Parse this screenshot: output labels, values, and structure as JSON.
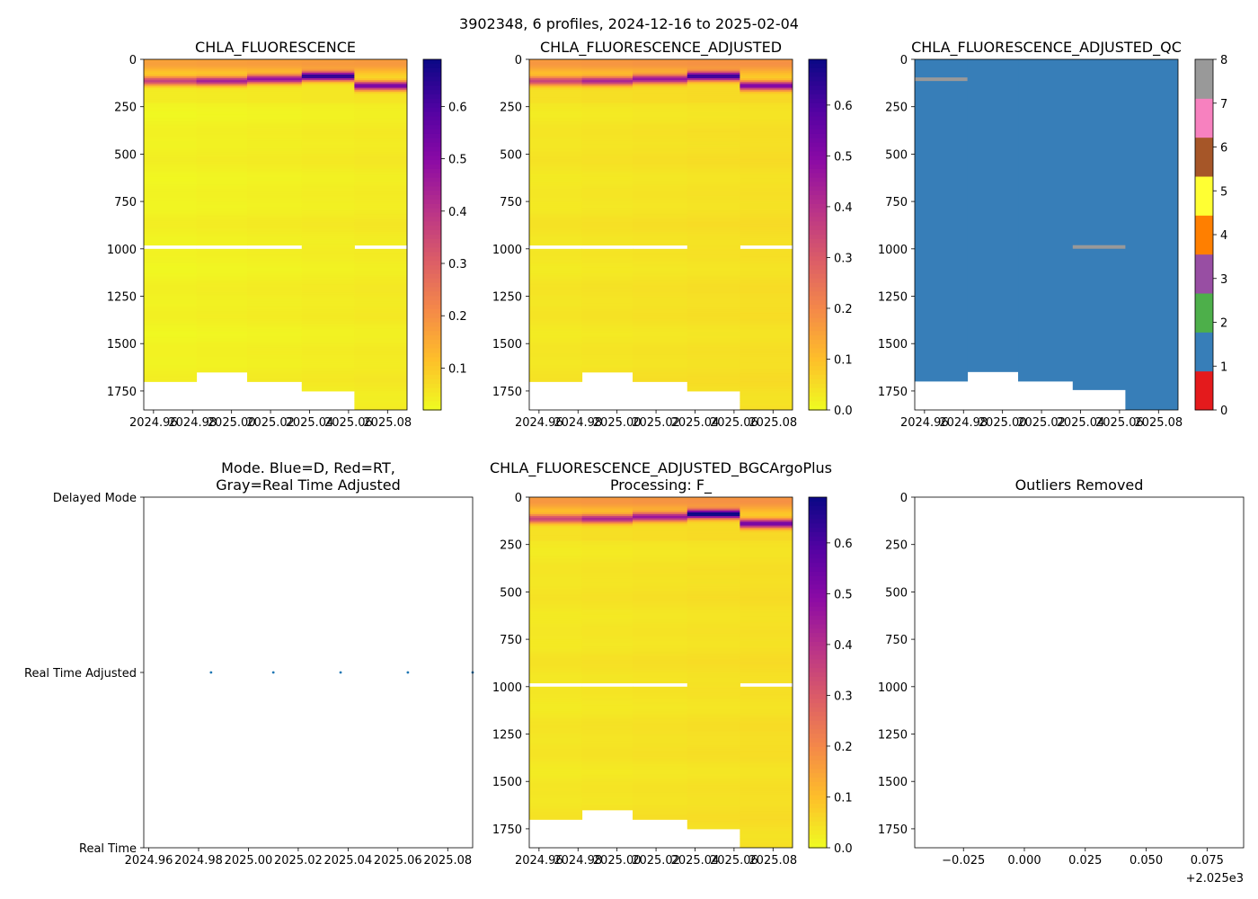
{
  "figure": {
    "suptitle": "3902348, 6 profiles, 2024-12-16 to 2025-02-04"
  },
  "colors": {
    "plasma": [
      "#0d0887",
      "#5302a3",
      "#8b0aa5",
      "#b83289",
      "#db5c68",
      "#f48849",
      "#febd2a",
      "#f0f921"
    ],
    "qc": [
      "#e41a1c",
      "#377eb8",
      "#4daf4a",
      "#984ea3",
      "#ff7f00",
      "#ffff33",
      "#a65628",
      "#f781bf",
      "#999999"
    ],
    "mode_points": "#1f77b4"
  },
  "chart_data": [
    {
      "id": "chla",
      "type": "heatmap",
      "title": "CHLA_FLUORESCENCE",
      "xlim": [
        2024.955,
        2025.09
      ],
      "ylim": [
        1850,
        0
      ],
      "xticks": [
        "2024.96",
        "2024.98",
        "2025.00",
        "2025.02",
        "2025.04",
        "2025.06",
        "2025.08"
      ],
      "xtick_values": [
        2024.96,
        2024.98,
        2025.0,
        2025.02,
        2025.04,
        2025.06,
        2025.08
      ],
      "yticks": [
        "0",
        "250",
        "500",
        "750",
        "1000",
        "1250",
        "1500",
        "1750"
      ],
      "ytick_values": [
        0,
        250,
        500,
        750,
        1000,
        1250,
        1500,
        1750
      ],
      "colorbar": {
        "range": [
          0.02,
          0.69
        ],
        "ticks": [
          "0.1",
          "0.2",
          "0.3",
          "0.4",
          "0.5",
          "0.6"
        ],
        "tick_values": [
          0.1,
          0.2,
          0.3,
          0.4,
          0.5,
          0.6
        ]
      },
      "columns": [
        {
          "x0": 2024.955,
          "x1": 2024.982,
          "max_depth": 1700,
          "gap": [
            980,
            1000
          ],
          "dcm_depth": 115,
          "peak": 0.34
        },
        {
          "x0": 2024.982,
          "x1": 2025.008,
          "max_depth": 1650,
          "gap": [
            980,
            1000
          ],
          "dcm_depth": 115,
          "peak": 0.42
        },
        {
          "x0": 2025.008,
          "x1": 2025.036,
          "max_depth": 1700,
          "gap": [
            980,
            1000
          ],
          "dcm_depth": 105,
          "peak": 0.45
        },
        {
          "x0": 2025.036,
          "x1": 2025.063,
          "max_depth": 1745,
          "gap": null,
          "dcm_depth": 90,
          "peak": 0.62
        },
        {
          "x0": 2025.063,
          "x1": 2025.09,
          "max_depth": 1850,
          "gap": [
            980,
            1000
          ],
          "dcm_depth": 140,
          "peak": 0.52
        }
      ]
    },
    {
      "id": "chla_adj",
      "type": "heatmap",
      "title": "CHLA_FLUORESCENCE_ADJUSTED",
      "xlim": [
        2024.955,
        2025.09
      ],
      "ylim": [
        1850,
        0
      ],
      "xticks": [
        "2024.96",
        "2024.98",
        "2025.00",
        "2025.02",
        "2025.04",
        "2025.06",
        "2025.08"
      ],
      "xtick_values": [
        2024.96,
        2024.98,
        2025.0,
        2025.02,
        2025.04,
        2025.06,
        2025.08
      ],
      "yticks": [
        "0",
        "250",
        "500",
        "750",
        "1000",
        "1250",
        "1500",
        "1750"
      ],
      "ytick_values": [
        0,
        250,
        500,
        750,
        1000,
        1250,
        1500,
        1750
      ],
      "colorbar": {
        "range": [
          0.0,
          0.69
        ],
        "ticks": [
          "0.0",
          "0.1",
          "0.2",
          "0.3",
          "0.4",
          "0.5",
          "0.6"
        ],
        "tick_values": [
          0.0,
          0.1,
          0.2,
          0.3,
          0.4,
          0.5,
          0.6
        ]
      },
      "columns": [
        {
          "x0": 2024.955,
          "x1": 2024.982,
          "max_depth": 1700,
          "gap": [
            980,
            1000
          ],
          "dcm_depth": 115,
          "peak": 0.32
        },
        {
          "x0": 2024.982,
          "x1": 2025.008,
          "max_depth": 1650,
          "gap": [
            980,
            1000
          ],
          "dcm_depth": 115,
          "peak": 0.4
        },
        {
          "x0": 2025.008,
          "x1": 2025.036,
          "max_depth": 1700,
          "gap": [
            980,
            1000
          ],
          "dcm_depth": 105,
          "peak": 0.43
        },
        {
          "x0": 2025.036,
          "x1": 2025.063,
          "max_depth": 1745,
          "gap": null,
          "dcm_depth": 90,
          "peak": 0.6
        },
        {
          "x0": 2025.063,
          "x1": 2025.09,
          "max_depth": 1850,
          "gap": [
            980,
            1000
          ],
          "dcm_depth": 140,
          "peak": 0.5
        }
      ]
    },
    {
      "id": "chla_qc",
      "type": "heatmap",
      "title": "CHLA_FLUORESCENCE_ADJUSTED_QC",
      "xlim": [
        2024.955,
        2025.09
      ],
      "ylim": [
        1850,
        0
      ],
      "xticks": [
        "2024.96",
        "2024.98",
        "2025.00",
        "2025.02",
        "2025.04",
        "2025.06",
        "2025.08"
      ],
      "xtick_values": [
        2024.96,
        2024.98,
        2025.0,
        2025.02,
        2025.04,
        2025.06,
        2025.08
      ],
      "yticks": [
        "0",
        "250",
        "500",
        "750",
        "1000",
        "1250",
        "1500",
        "1750"
      ],
      "ytick_values": [
        0,
        250,
        500,
        750,
        1000,
        1250,
        1500,
        1750
      ],
      "colorbar": {
        "range": [
          0,
          8
        ],
        "ticks": [
          "0",
          "1",
          "2",
          "3",
          "4",
          "5",
          "6",
          "7",
          "8"
        ],
        "tick_values": [
          0,
          1,
          2,
          3,
          4,
          5,
          6,
          7,
          8
        ]
      },
      "qc_value": 1,
      "columns": [
        {
          "x0": 2024.955,
          "x1": 2024.982,
          "max_depth": 1700
        },
        {
          "x0": 2024.982,
          "x1": 2025.008,
          "max_depth": 1650
        },
        {
          "x0": 2025.008,
          "x1": 2025.036,
          "max_depth": 1700
        },
        {
          "x0": 2025.036,
          "x1": 2025.063,
          "max_depth": 1745
        },
        {
          "x0": 2025.063,
          "x1": 2025.09,
          "max_depth": 1850
        }
      ],
      "marks": [
        {
          "x0": 2024.955,
          "x1": 2024.982,
          "depth": 105,
          "qc": 8
        },
        {
          "x0": 2025.036,
          "x1": 2025.063,
          "depth": 990,
          "qc": 8
        }
      ]
    },
    {
      "id": "mode",
      "type": "scatter",
      "title": "Mode. Blue=D, Red=RT,\nGray=Real Time Adjusted",
      "xlim": [
        2024.958,
        2025.09
      ],
      "xticks": [
        "2024.96",
        "2024.98",
        "2025.00",
        "2025.02",
        "2025.04",
        "2025.06",
        "2025.08"
      ],
      "xtick_values": [
        2024.96,
        2024.98,
        2025.0,
        2025.02,
        2025.04,
        2025.06,
        2025.08
      ],
      "yticks": [
        "Delayed Mode",
        "Real Time Adjusted",
        "Real Time"
      ],
      "ytick_values": [
        2,
        1,
        0
      ],
      "ylim": [
        0,
        2
      ],
      "points": [
        {
          "x": 2024.985,
          "y": 1
        },
        {
          "x": 2025.01,
          "y": 1
        },
        {
          "x": 2025.037,
          "y": 1
        },
        {
          "x": 2025.064,
          "y": 1
        },
        {
          "x": 2025.09,
          "y": 1
        }
      ]
    },
    {
      "id": "bgc",
      "type": "heatmap",
      "title": "CHLA_FLUORESCENCE_ADJUSTED_BGCArgoPlus\nProcessing: F_",
      "xlim": [
        2024.955,
        2025.09
      ],
      "ylim": [
        1850,
        0
      ],
      "xticks": [
        "2024.96",
        "2024.98",
        "2025.00",
        "2025.02",
        "2025.04",
        "2025.06",
        "2025.08"
      ],
      "xtick_values": [
        2024.96,
        2024.98,
        2025.0,
        2025.02,
        2025.04,
        2025.06,
        2025.08
      ],
      "yticks": [
        "0",
        "250",
        "500",
        "750",
        "1000",
        "1250",
        "1500",
        "1750"
      ],
      "ytick_values": [
        0,
        250,
        500,
        750,
        1000,
        1250,
        1500,
        1750
      ],
      "colorbar": {
        "range": [
          0.0,
          0.69
        ],
        "ticks": [
          "0.0",
          "0.1",
          "0.2",
          "0.3",
          "0.4",
          "0.5",
          "0.6"
        ],
        "tick_values": [
          0.0,
          0.1,
          0.2,
          0.3,
          0.4,
          0.5,
          0.6
        ]
      },
      "columns": [
        {
          "x0": 2024.955,
          "x1": 2024.982,
          "max_depth": 1700,
          "gap": [
            980,
            995
          ],
          "dcm_depth": 115,
          "peak": 0.32
        },
        {
          "x0": 2024.982,
          "x1": 2025.008,
          "max_depth": 1650,
          "gap": [
            980,
            995
          ],
          "dcm_depth": 115,
          "peak": 0.4
        },
        {
          "x0": 2025.008,
          "x1": 2025.036,
          "max_depth": 1700,
          "gap": [
            980,
            995
          ],
          "dcm_depth": 105,
          "peak": 0.43
        },
        {
          "x0": 2025.036,
          "x1": 2025.063,
          "max_depth": 1745,
          "gap": null,
          "dcm_depth": 90,
          "peak": 0.68
        },
        {
          "x0": 2025.063,
          "x1": 2025.09,
          "max_depth": 1850,
          "gap": [
            985,
            1000
          ],
          "dcm_depth": 140,
          "peak": 0.52
        }
      ]
    },
    {
      "id": "outliers",
      "type": "scatter",
      "title": "Outliers Removed",
      "xlim": [
        -0.045,
        0.09
      ],
      "ylim": [
        1850,
        0
      ],
      "xticks": [
        "−0.025",
        "0.000",
        "0.025",
        "0.050",
        "0.075"
      ],
      "xtick_values": [
        -0.025,
        0.0,
        0.025,
        0.05,
        0.075
      ],
      "offset_text": "+2.025e3",
      "yticks": [
        "0",
        "250",
        "500",
        "750",
        "1000",
        "1250",
        "1500",
        "1750"
      ],
      "ytick_values": [
        0,
        250,
        500,
        750,
        1000,
        1250,
        1500,
        1750
      ],
      "points": []
    }
  ]
}
